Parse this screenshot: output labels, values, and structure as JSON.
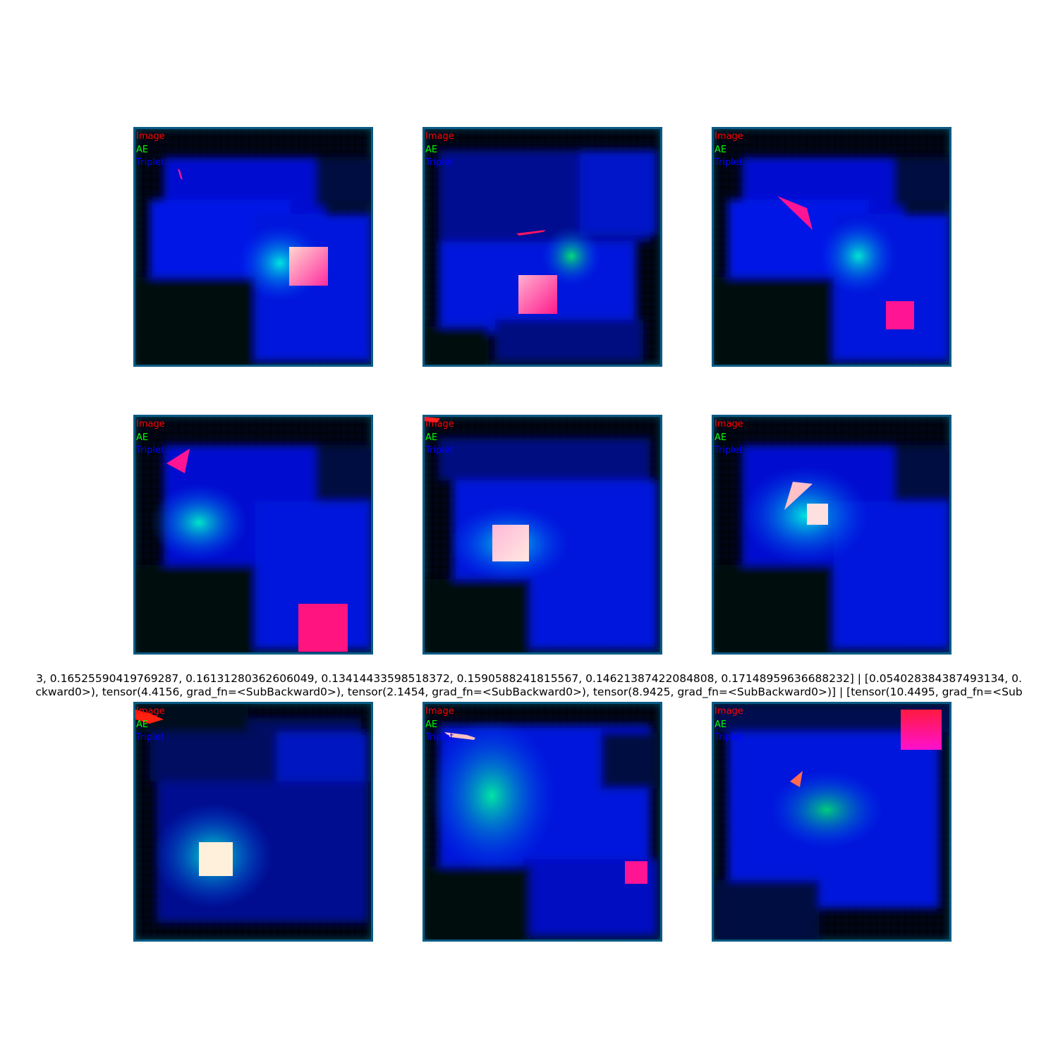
{
  "legend": {
    "image": "Image",
    "ae": "AE",
    "triplet": "Triplet"
  },
  "caption": {
    "line1": "3, 0.16525590419769287, 0.16131280362606049, 0.13414433598518372, 0.1590588241815567, 0.14621387422084808, 0.17148959636688232] | [0.054028384387493134, 0.",
    "line2": "ckward0>), tensor(4.4156, grad_fn=<SubBackward0>), tensor(2.1454, grad_fn=<SubBackward0>), tensor(8.9425, grad_fn=<SubBackward0>)] | [tensor(10.4495, grad_fn=<Sub"
  },
  "colors": {
    "image_red": "#ff0000",
    "ae_green": "#00ff00",
    "triplet_blue": "#0000ff",
    "shape_magenta": "#ff1493",
    "shape_pale": "#ffe6dc",
    "panel_border": "#0a5b86"
  }
}
